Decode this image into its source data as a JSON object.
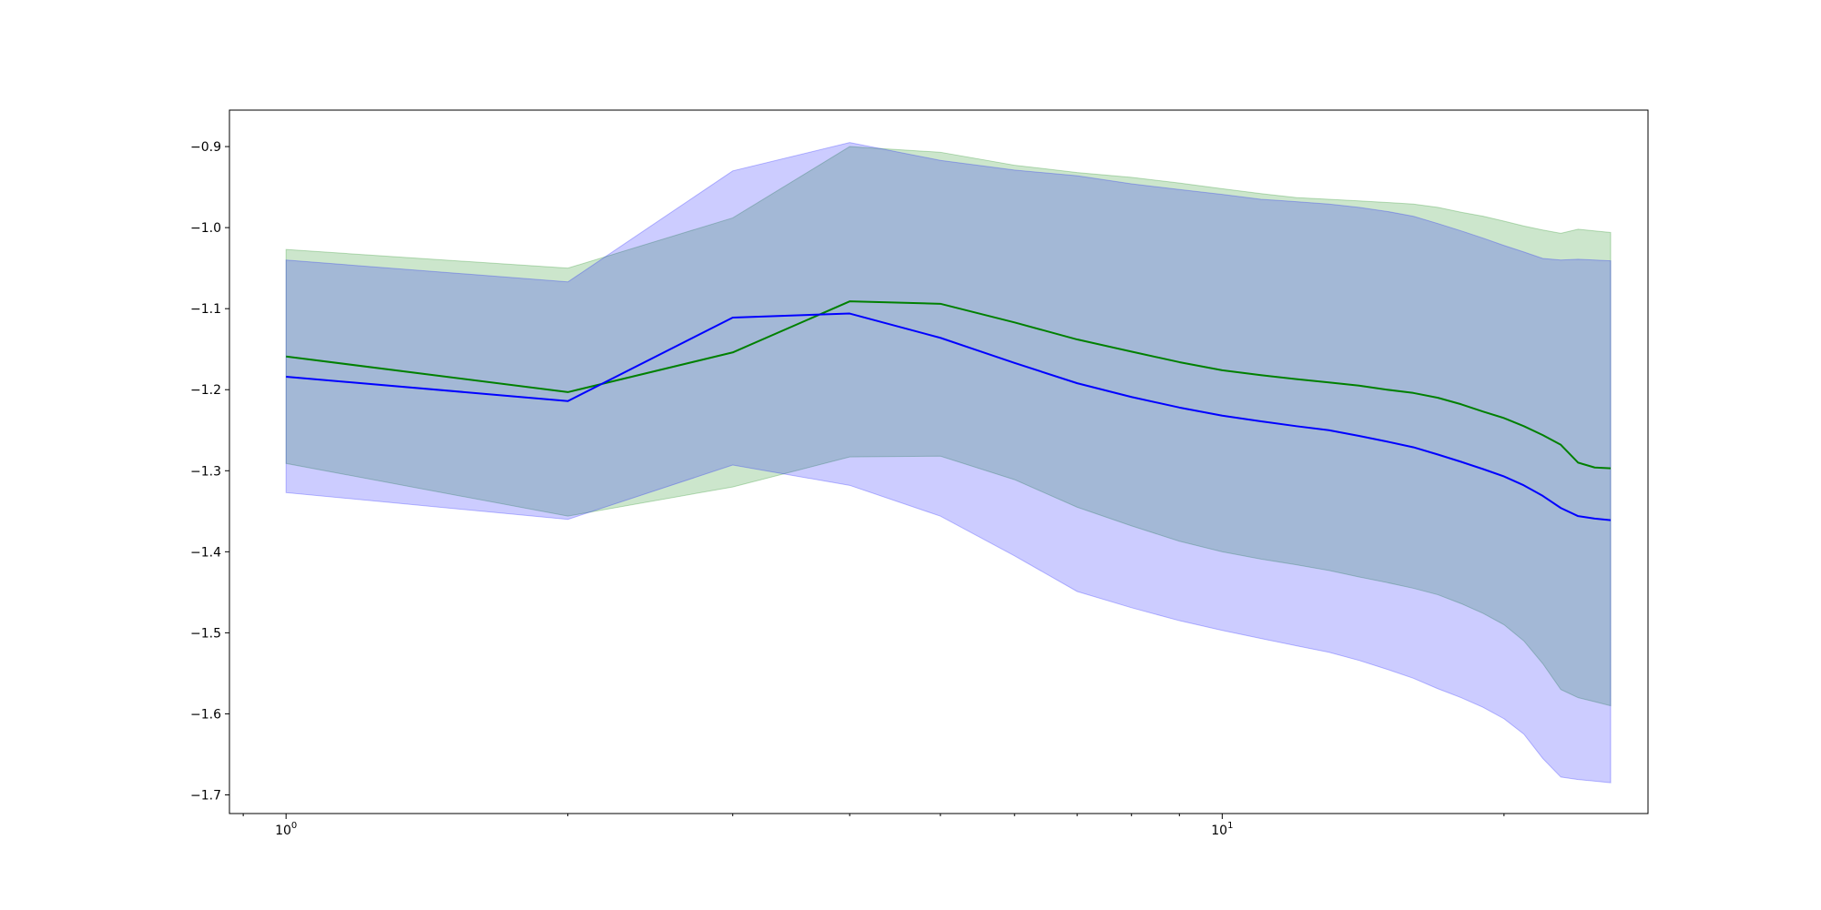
{
  "chart_data": {
    "type": "line",
    "title": "",
    "xlabel": "",
    "ylabel": "",
    "xscale": "log",
    "xlim": [
      0.87,
      28.5
    ],
    "ylim": [
      -1.723,
      -0.855
    ],
    "grid": false,
    "legend": "none",
    "x_ticks": [
      {
        "value": 1,
        "base": "10",
        "exp": "0"
      },
      {
        "value": 10,
        "base": "10",
        "exp": "1"
      }
    ],
    "y_ticks": [
      {
        "value": -0.9,
        "label": "−0.9"
      },
      {
        "value": -1.0,
        "label": "−1.0"
      },
      {
        "value": -1.1,
        "label": "−1.1"
      },
      {
        "value": -1.2,
        "label": "−1.2"
      },
      {
        "value": -1.3,
        "label": "−1.3"
      },
      {
        "value": -1.4,
        "label": "−1.4"
      },
      {
        "value": -1.5,
        "label": "−1.5"
      },
      {
        "value": -1.6,
        "label": "−1.6"
      },
      {
        "value": -1.7,
        "label": "−1.7"
      }
    ],
    "x": [
      1,
      2,
      3,
      4,
      5,
      6,
      7,
      8,
      9,
      10,
      11,
      12,
      13,
      14,
      15,
      16,
      17,
      18,
      19,
      20,
      21,
      22,
      23,
      24,
      25,
      26
    ],
    "series": [
      {
        "color": "#008000",
        "band_color": "#008000",
        "band_opacity": 0.2,
        "values": [
          -1.159,
          -1.203,
          -1.154,
          -1.091,
          -1.094,
          -1.117,
          -1.138,
          -1.153,
          -1.166,
          -1.176,
          -1.182,
          -1.187,
          -1.191,
          -1.195,
          -1.2,
          -1.204,
          -1.21,
          -1.218,
          -1.227,
          -1.235,
          -1.245,
          -1.256,
          -1.268,
          -1.29,
          -1.296,
          -1.297
        ],
        "upper": [
          -1.027,
          -1.05,
          -0.988,
          -0.9,
          -0.907,
          -0.923,
          -0.932,
          -0.938,
          -0.945,
          -0.952,
          -0.958,
          -0.963,
          -0.965,
          -0.967,
          -0.969,
          -0.971,
          -0.975,
          -0.981,
          -0.986,
          -0.992,
          -0.998,
          -1.003,
          -1.007,
          -1.002,
          -1.004,
          -1.006
        ],
        "lower": [
          -1.291,
          -1.356,
          -1.32,
          -1.283,
          -1.282,
          -1.311,
          -1.345,
          -1.368,
          -1.387,
          -1.4,
          -1.409,
          -1.416,
          -1.423,
          -1.431,
          -1.438,
          -1.445,
          -1.453,
          -1.464,
          -1.476,
          -1.49,
          -1.51,
          -1.538,
          -1.57,
          -1.58,
          -1.585,
          -1.59
        ]
      },
      {
        "color": "#0000ff",
        "band_color": "#0000ff",
        "band_opacity": 0.2,
        "values": [
          -1.184,
          -1.214,
          -1.111,
          -1.106,
          -1.136,
          -1.167,
          -1.192,
          -1.209,
          -1.222,
          -1.232,
          -1.239,
          -1.245,
          -1.25,
          -1.257,
          -1.264,
          -1.271,
          -1.28,
          -1.289,
          -1.298,
          -1.307,
          -1.318,
          -1.331,
          -1.346,
          -1.356,
          -1.359,
          -1.361
        ],
        "upper": [
          -1.04,
          -1.067,
          -0.93,
          -0.895,
          -0.917,
          -0.929,
          -0.936,
          -0.946,
          -0.953,
          -0.959,
          -0.965,
          -0.968,
          -0.971,
          -0.975,
          -0.98,
          -0.986,
          -0.995,
          -1.004,
          -1.013,
          -1.022,
          -1.03,
          -1.038,
          -1.04,
          -1.039,
          -1.04,
          -1.041
        ],
        "lower": [
          -1.327,
          -1.36,
          -1.293,
          -1.318,
          -1.356,
          -1.405,
          -1.449,
          -1.469,
          -1.485,
          -1.497,
          -1.507,
          -1.516,
          -1.524,
          -1.534,
          -1.545,
          -1.556,
          -1.569,
          -1.58,
          -1.592,
          -1.606,
          -1.625,
          -1.655,
          -1.678,
          -1.681,
          -1.683,
          -1.685
        ]
      }
    ]
  }
}
